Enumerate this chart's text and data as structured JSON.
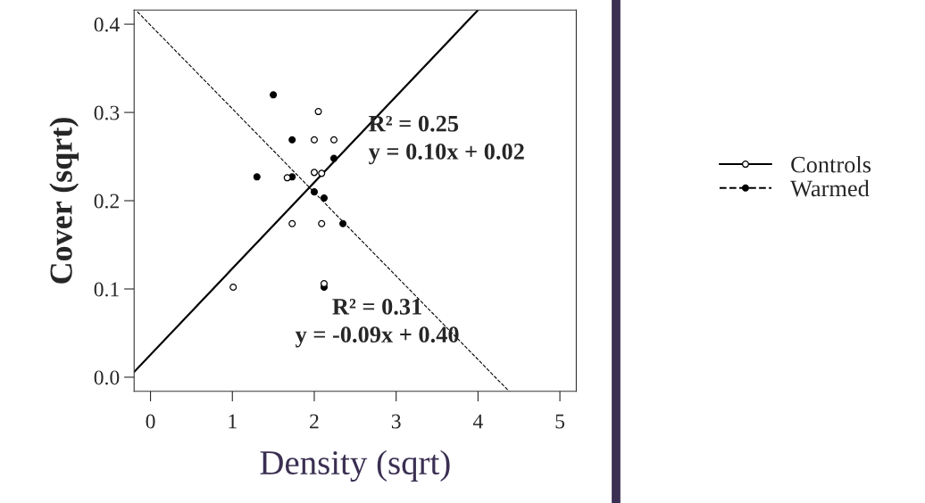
{
  "chart_data": {
    "type": "scatter",
    "xlabel": "Density (sqrt)",
    "ylabel": "Cover (sqrt)",
    "xlim": [
      -0.2,
      5.2
    ],
    "ylim": [
      -0.016,
      0.416
    ],
    "xticks": [
      0,
      1,
      2,
      3,
      4,
      5
    ],
    "yticks": [
      {
        "value": 0,
        "label": "0.0"
      },
      0.1,
      0.2,
      0.3,
      0.4
    ],
    "grid": false,
    "legend": "right",
    "series": [
      {
        "name": "Controls",
        "marker": "circle",
        "color": "#ffffff",
        "line_style": "solid",
        "x": [
          2.05,
          2.0,
          2.24,
          2.0,
          2.09,
          1.67,
          1.73,
          2.09,
          1.01,
          2.12
        ],
        "values": [
          0.301,
          0.269,
          0.269,
          0.232,
          0.231,
          0.226,
          0.174,
          0.174,
          0.102,
          0.106
        ]
      },
      {
        "name": "Warmed",
        "marker": "circle",
        "color": "#000000",
        "line_style": "dashed",
        "x": [
          1.5,
          1.73,
          2.24,
          1.3,
          1.73,
          2.0,
          2.12,
          2.35,
          2.12
        ],
        "values": [
          0.32,
          0.269,
          0.248,
          0.227,
          0.227,
          0.21,
          0.203,
          0.174,
          0.102
        ]
      },
      {
        "type": "line",
        "color": "#000000",
        "line_style": "solid",
        "x": [
          -0.2,
          4.0
        ],
        "values": [
          0.006,
          0.416
        ]
      },
      {
        "type": "line",
        "color": "#000000",
        "line_style": "dashed",
        "x": [
          -0.16,
          4.38
        ],
        "values": [
          0.414,
          -0.016
        ]
      }
    ],
    "annotations": [
      "R² = 0.25\ny = 0.10x + 0.02",
      "R² = 0.31\ny = -0.09x + 0.40"
    ]
  }
}
